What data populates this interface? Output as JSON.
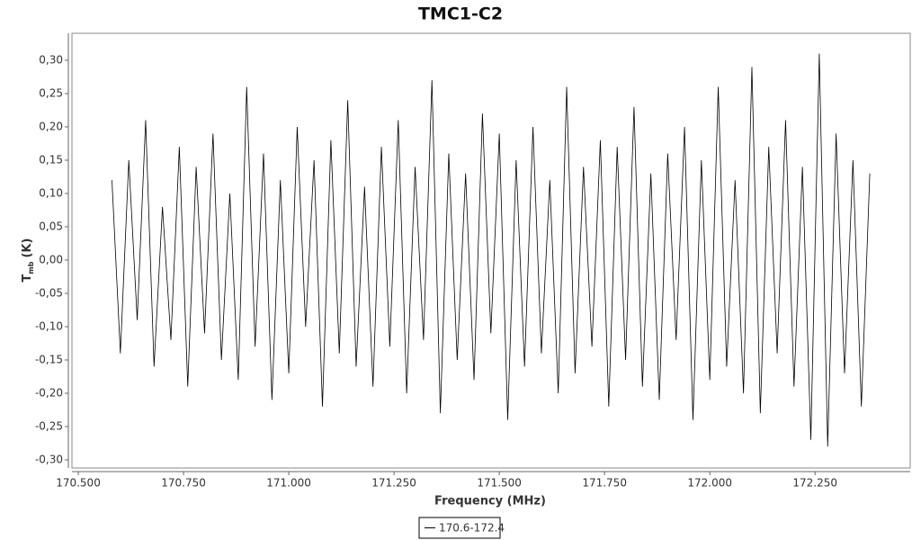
{
  "chart_data": {
    "type": "line",
    "title": "TMC1-C2",
    "x_label": "Frequency (MHz)",
    "y_label": "T",
    "y_label_sub": "mb",
    "y_label_unit": "(K)",
    "legend": "bottom",
    "x": [
      170.58,
      170.6,
      170.62,
      170.64,
      170.66,
      170.68,
      170.7,
      170.72,
      170.74,
      170.76,
      170.78,
      170.8,
      170.82,
      170.84,
      170.86,
      170.88,
      170.9,
      170.92,
      170.94,
      170.96,
      170.98,
      171,
      171.02,
      171.04,
      171.06,
      171.08,
      171.1,
      171.12,
      171.14,
      171.16,
      171.18,
      171.2,
      171.22,
      171.24,
      171.26,
      171.28,
      171.3,
      171.32,
      171.34,
      171.36,
      171.38,
      171.4,
      171.42,
      171.44,
      171.46,
      171.48,
      171.5,
      171.52,
      171.54,
      171.56,
      171.58,
      171.6,
      171.62,
      171.64,
      171.66,
      171.68,
      171.7,
      171.72,
      171.74,
      171.76,
      171.78,
      171.8,
      171.82,
      171.84,
      171.86,
      171.88,
      171.9,
      171.92,
      171.94,
      171.96,
      171.98,
      172,
      172.02,
      172.04,
      172.06,
      172.08,
      172.1,
      172.12,
      172.14,
      172.16,
      172.18,
      172.2,
      172.22,
      172.24,
      172.26,
      172.28,
      172.3,
      172.32,
      172.34,
      172.36,
      172.38
    ],
    "series": [
      {
        "name": "170.6-172.4",
        "color": "#000000",
        "values": [
          0.12,
          -0.14,
          0.15,
          -0.09,
          0.21,
          -0.16,
          0.08,
          -0.12,
          0.17,
          -0.19,
          0.14,
          -0.11,
          0.19,
          -0.15,
          0.1,
          -0.18,
          0.26,
          -0.13,
          0.16,
          -0.21,
          0.12,
          -0.17,
          0.2,
          -0.1,
          0.15,
          -0.22,
          0.18,
          -0.14,
          0.24,
          -0.16,
          0.11,
          -0.19,
          0.17,
          -0.13,
          0.21,
          -0.2,
          0.14,
          -0.12,
          0.27,
          -0.23,
          0.16,
          -0.15,
          0.13,
          -0.18,
          0.22,
          -0.11,
          0.19,
          -0.24,
          0.15,
          -0.16,
          0.2,
          -0.14,
          0.12,
          -0.2,
          0.26,
          -0.17,
          0.14,
          -0.13,
          0.18,
          -0.22,
          0.17,
          -0.15,
          0.23,
          -0.19,
          0.13,
          -0.21,
          0.16,
          -0.12,
          0.2,
          -0.24,
          0.15,
          -0.18,
          0.26,
          -0.16,
          0.12,
          -0.2,
          0.29,
          -0.23,
          0.17,
          -0.14,
          0.21,
          -0.19,
          0.14,
          -0.27,
          0.31,
          -0.28,
          0.19,
          -0.17,
          0.15,
          -0.22,
          0.13
        ]
      }
    ],
    "xlim": [
      170.485,
      172.476
    ],
    "xticks": [
      {
        "value": 170.5,
        "label": "170.500"
      },
      {
        "value": 170.75,
        "label": "170.750"
      },
      {
        "value": 171,
        "label": "171.000"
      },
      {
        "value": 171.25,
        "label": "171.250"
      },
      {
        "value": 171.5,
        "label": "171.500"
      },
      {
        "value": 171.75,
        "label": "171.750"
      },
      {
        "value": 172,
        "label": "172.000"
      },
      {
        "value": 172.25,
        "label": "172.250"
      }
    ],
    "ylim": [
      -0.3122,
      0.3405
    ],
    "yticks": [
      {
        "value": 0.3,
        "label": "0,30"
      },
      {
        "value": 0.25,
        "label": "0,25"
      },
      {
        "value": 0.2,
        "label": "0,20"
      },
      {
        "value": 0.15,
        "label": "0,15"
      },
      {
        "value": 0.1,
        "label": "0,10"
      },
      {
        "value": 0.05,
        "label": "0,05"
      },
      {
        "value": 0,
        "label": "0,00"
      },
      {
        "value": -0.05,
        "label": "-0,05"
      },
      {
        "value": -0.1,
        "label": "-0,10"
      },
      {
        "value": -0.15,
        "label": "-0,15"
      },
      {
        "value": -0.2,
        "label": "-0,20"
      },
      {
        "value": -0.25,
        "label": "-0,25"
      },
      {
        "value": -0.3,
        "label": "-0,30"
      }
    ],
    "grid": false
  }
}
